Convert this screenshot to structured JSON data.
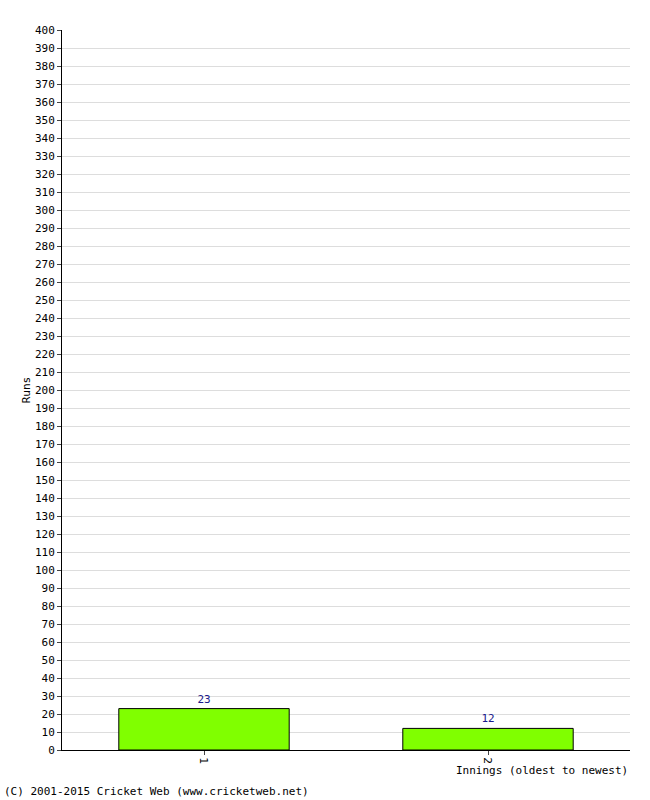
{
  "chart_data": {
    "type": "bar",
    "y_label": "Runs",
    "x_label": "Innings (oldest to newest)",
    "annotations": [
      "(C) 2001-2015 Cricket Web (www.cricketweb.net)"
    ],
    "categories": [
      "1",
      "2"
    ],
    "values": [
      23,
      12
    ],
    "color": "#80ff00",
    "ylim": [
      0,
      400
    ],
    "yticks": [
      0,
      10,
      20,
      30,
      40,
      50,
      60,
      70,
      80,
      90,
      100,
      110,
      120,
      130,
      140,
      150,
      160,
      170,
      180,
      190,
      200,
      210,
      220,
      230,
      240,
      250,
      260,
      270,
      280,
      290,
      300,
      310,
      320,
      330,
      340,
      350,
      360,
      370,
      380,
      390,
      400
    ],
    "grid": true,
    "data_labels": true
  }
}
